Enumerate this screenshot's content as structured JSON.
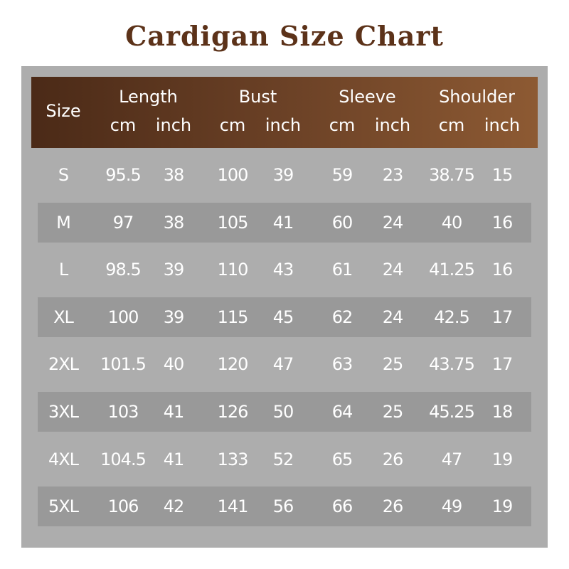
{
  "title": "Cardigan Size Chart",
  "header": {
    "size": "Size",
    "groups": [
      "Length",
      "Bust",
      "Sleeve",
      "Shoulder"
    ],
    "units": [
      "cm",
      "inch"
    ]
  },
  "colors": {
    "title": "#5c3219",
    "header_start": "#4b2a17",
    "header_end": "#8d5a33",
    "panel": "#adadad",
    "stripe": "#999999"
  },
  "rows": [
    [
      "S",
      "95.5",
      "38",
      "100",
      "39",
      "59",
      "23",
      "38.75",
      "15"
    ],
    [
      "M",
      "97",
      "38",
      "105",
      "41",
      "60",
      "24",
      "40",
      "16"
    ],
    [
      "L",
      "98.5",
      "39",
      "110",
      "43",
      "61",
      "24",
      "41.25",
      "16"
    ],
    [
      "XL",
      "100",
      "39",
      "115",
      "45",
      "62",
      "24",
      "42.5",
      "17"
    ],
    [
      "2XL",
      "101.5",
      "40",
      "120",
      "47",
      "63",
      "25",
      "43.75",
      "17"
    ],
    [
      "3XL",
      "103",
      "41",
      "126",
      "50",
      "64",
      "25",
      "45.25",
      "18"
    ],
    [
      "4XL",
      "104.5",
      "41",
      "133",
      "52",
      "65",
      "26",
      "47",
      "19"
    ],
    [
      "5XL",
      "106",
      "42",
      "141",
      "56",
      "66",
      "26",
      "49",
      "19"
    ]
  ]
}
